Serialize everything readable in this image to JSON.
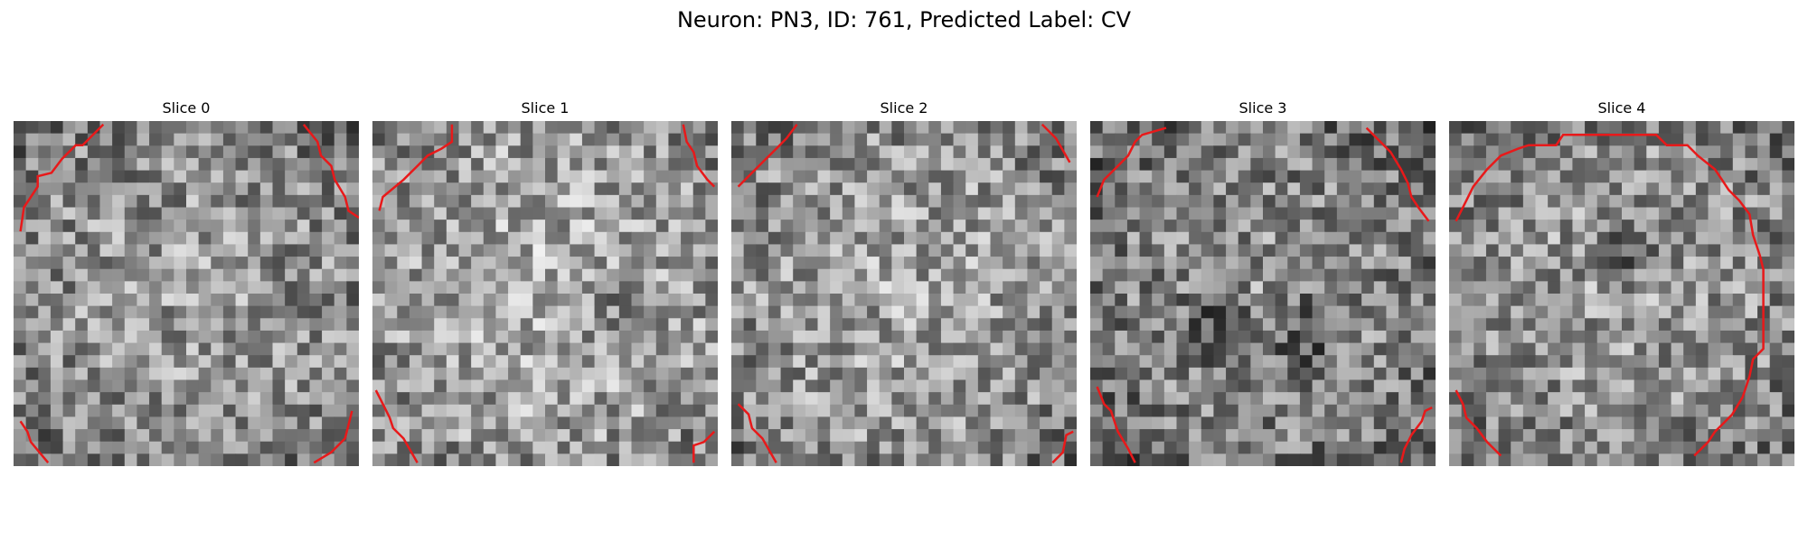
{
  "figure": {
    "title": "Neuron: PN3, ID: 761, Predicted Label: CV"
  },
  "grid_size": 28,
  "contour_color": "#e8191a",
  "panels": [
    {
      "title": "Slice 0",
      "seed": 11,
      "center_bright": 0.55,
      "dark_blobs": []
    },
    {
      "title": "Slice 1",
      "seed": 23,
      "center_bright": 0.62,
      "dark_blobs": [
        [
          0.72,
          0.58,
          0.08
        ]
      ]
    },
    {
      "title": "Slice 2",
      "seed": 37,
      "center_bright": 0.58,
      "dark_blobs": []
    },
    {
      "title": "Slice 3",
      "seed": 41,
      "center_bright": 0.5,
      "dark_blobs": [
        [
          0.35,
          0.6,
          0.1
        ],
        [
          0.6,
          0.62,
          0.12
        ]
      ]
    },
    {
      "title": "Slice 4",
      "seed": 53,
      "center_bright": 0.55,
      "dark_blobs": [
        [
          0.5,
          0.38,
          0.09
        ]
      ]
    }
  ]
}
